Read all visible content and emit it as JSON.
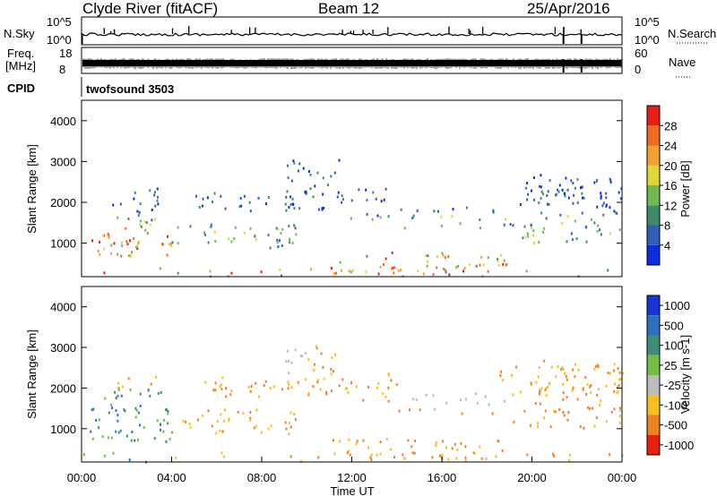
{
  "header": {
    "title": "Clyde River (fitACF)",
    "beam": "Beam 12",
    "date": "25/Apr/2016"
  },
  "status_panel": {
    "nsky_label": "N.Sky",
    "nsky_ticks": [
      "10^5",
      "10^0"
    ],
    "nsearch_label": "N.Search",
    "nsearch_ticks": [
      "10^5",
      "10^0"
    ],
    "freq_label_1": "Freq.",
    "freq_label_2": "[MHz]",
    "freq_ticks": [
      "18",
      "8"
    ],
    "nave_label": "Nave",
    "nave_ticks": [
      "60",
      "0"
    ],
    "cpid_label": "CPID",
    "cpid_value": "twofsound 3503"
  },
  "chart_data": [
    {
      "type": "heatmap",
      "name": "power",
      "ylabel": "Slant Range [km]",
      "xlabel": "",
      "yticks": [
        "1000",
        "2000",
        "3000",
        "4000"
      ],
      "ylim": [
        180,
        4500
      ],
      "colorbar_label": "Power [dB]",
      "colorbar_ticks": [
        "4",
        "8",
        "12",
        "16",
        "20",
        "24",
        "28"
      ],
      "colorbar_range": [
        0,
        32
      ],
      "colors": [
        "#0b2ee0",
        "#2f5fb8",
        "#3f8a6a",
        "#6dba55",
        "#e0d638",
        "#f2a030",
        "#f06a20",
        "#e81e14"
      ]
    },
    {
      "type": "heatmap",
      "name": "velocity",
      "ylabel": "Slant Range [km]",
      "xlabel": "Time UT",
      "yticks": [
        "1000",
        "2000",
        "3000",
        "4000"
      ],
      "ylim": [
        180,
        4500
      ],
      "xticks": [
        "00:00",
        "04:00",
        "08:00",
        "12:00",
        "16:00",
        "20:00",
        "00:00"
      ],
      "xlim_hours": [
        0,
        24
      ],
      "colorbar_label": "Velocity [m s-1]",
      "colorbar_ticks": [
        "1000",
        "500",
        "100",
        "25",
        "-25",
        "-100",
        "-500",
        "-1000"
      ],
      "colors": [
        "#1535d8",
        "#2f6fc0",
        "#3f8f78",
        "#70c040",
        "#bcbcbc",
        "#f4c020",
        "#f08020",
        "#e82010"
      ]
    }
  ]
}
